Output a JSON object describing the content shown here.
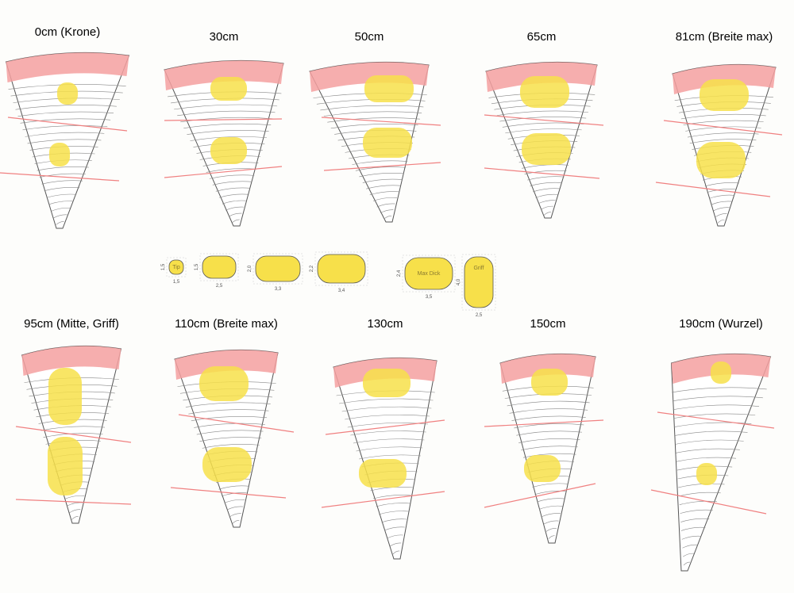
{
  "sections": [
    {
      "label": "0cm (Krone)"
    },
    {
      "label": "30cm"
    },
    {
      "label": "50cm"
    },
    {
      "label": "65cm"
    },
    {
      "label": "81cm (Breite max)"
    },
    {
      "label": "95cm (Mitte, Griff)"
    },
    {
      "label": "110cm (Breite max)"
    },
    {
      "label": "130cm"
    },
    {
      "label": "150cm"
    },
    {
      "label": "190cm (Wurzel)"
    }
  ],
  "profiles": [
    {
      "name": "Tip",
      "width": "1,5",
      "height": "1,5"
    },
    {
      "name": "",
      "width": "2,5",
      "height": "1,5"
    },
    {
      "name": "",
      "width": "3,3",
      "height": "2,0"
    },
    {
      "name": "",
      "width": "3,4",
      "height": "2,2"
    },
    {
      "name": "Max Dick",
      "width": "3,5",
      "height": "2,4"
    },
    {
      "name": "Griff",
      "width": "2,5",
      "height": "4,0"
    }
  ],
  "colors": {
    "bark": "#f4a0a0",
    "blank": "#f7e04a",
    "cut_line": "#f08080",
    "outline": "#555555"
  }
}
